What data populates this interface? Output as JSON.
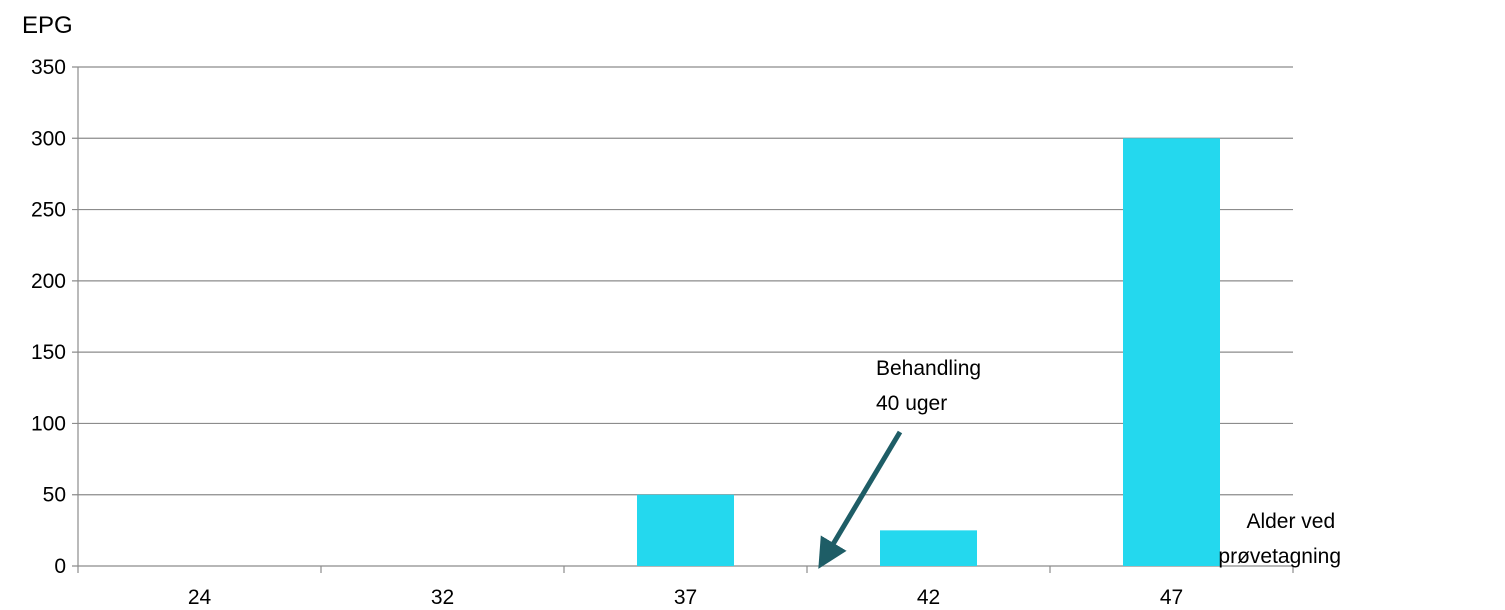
{
  "chart_data": {
    "type": "bar",
    "title": "",
    "ylabel": "EPG",
    "xlabel": [
      "Alder ved",
      "prøvetagning"
    ],
    "categories": [
      "24",
      "32",
      "37",
      "42",
      "47"
    ],
    "series": [
      {
        "values": [
          0,
          0,
          50,
          25,
          300
        ],
        "color": "#24d8ee"
      }
    ],
    "ylim": [
      0,
      350
    ],
    "yticks": [
      0,
      50,
      100,
      150,
      200,
      250,
      300,
      350
    ],
    "grid": true,
    "legend": "none",
    "annotation": {
      "lines": [
        "Behandling",
        "40 uger"
      ],
      "arrow_color": "#1e5d66",
      "points_to_x": 40
    }
  }
}
